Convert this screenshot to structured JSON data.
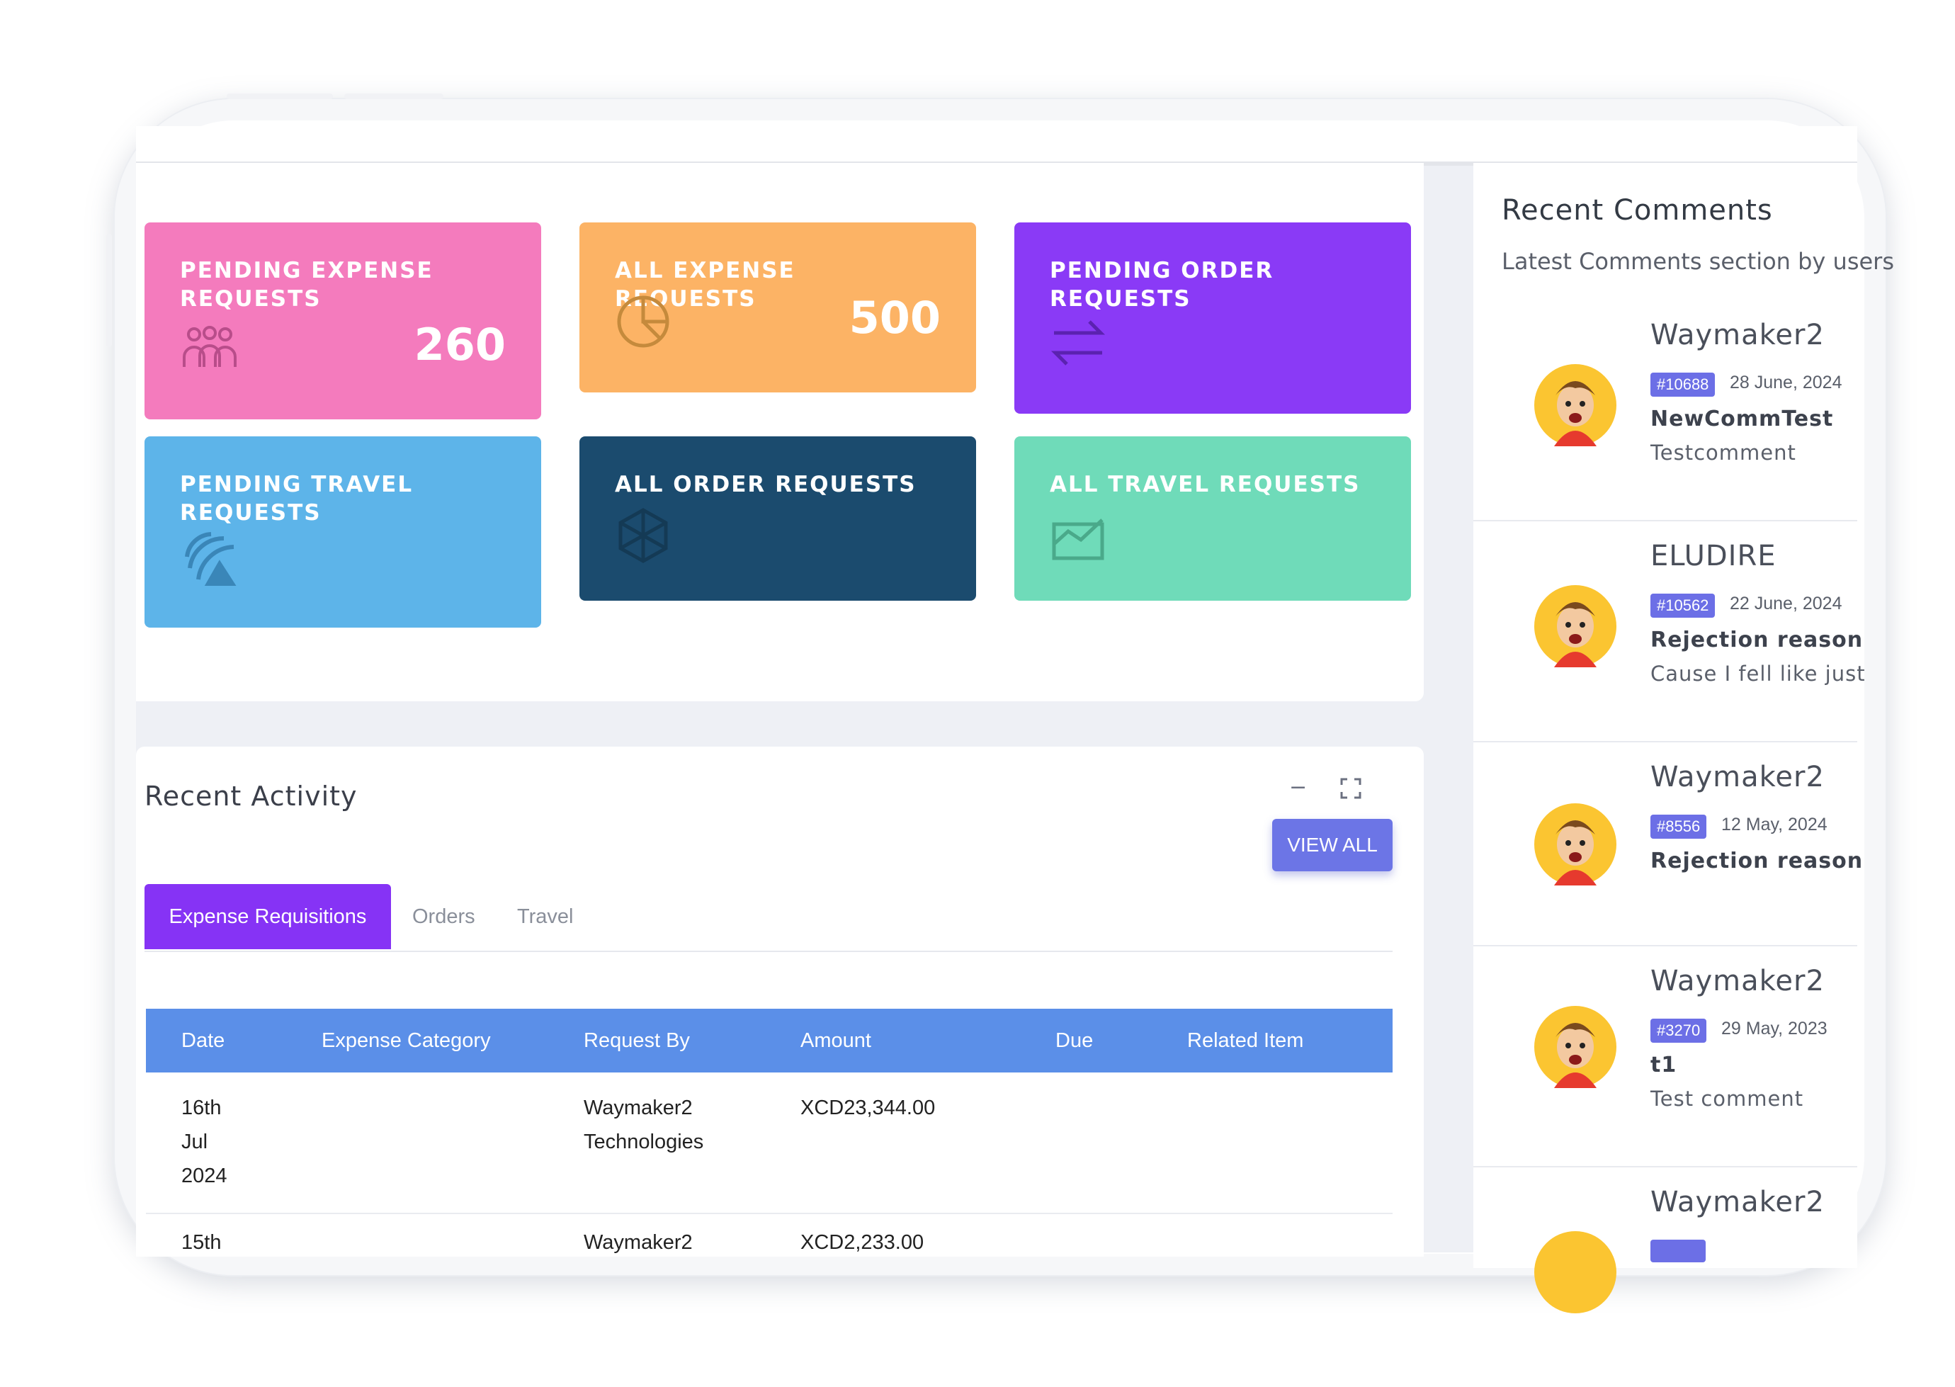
{
  "stat_cards": [
    {
      "title": "PENDING EXPENSE REQUESTS",
      "value": "260",
      "icon": "users-icon",
      "color": "#f47bbd"
    },
    {
      "title": "ALL EXPENSE REQUESTS",
      "value": "500",
      "icon": "pie-chart-icon",
      "color": "#fcb365"
    },
    {
      "title": "PENDING ORDER REQUESTS",
      "value": "",
      "icon": "swap-arrows-icon",
      "color": "#8a3af6"
    },
    {
      "title": "PENDING TRAVEL REQUESTS",
      "value": "",
      "icon": "signal-icon",
      "color": "#5db4e9"
    },
    {
      "title": "ALL ORDER REQUESTS",
      "value": "",
      "icon": "hexagon-icon",
      "color": "#1b4b6e"
    },
    {
      "title": "ALL TRAVEL REQUESTS",
      "value": "",
      "icon": "area-chart-icon",
      "color": "#6fdbb9"
    }
  ],
  "activity": {
    "title": "Recent Activity",
    "minimize": "−",
    "view_all": "VIEW ALL",
    "tabs": [
      "Expense Requisitions",
      "Orders",
      "Travel"
    ],
    "columns": [
      "Date",
      "Expense Category",
      "Request By",
      "Amount",
      "Due",
      "Related Item"
    ],
    "rows": [
      {
        "date": [
          "16th",
          "Jul",
          "2024"
        ],
        "category": "",
        "request_by": [
          "Waymaker2",
          "Technologies"
        ],
        "amount": "XCD23,344.00",
        "due": "",
        "related": ""
      },
      {
        "date": [
          "15th"
        ],
        "category": "",
        "request_by": [
          "Waymaker2"
        ],
        "amount": "XCD2,233.00",
        "due": "",
        "related": ""
      }
    ]
  },
  "comments": {
    "title": "Recent Comments",
    "subtitle": "Latest Comments section by users",
    "items": [
      {
        "name": "Waymaker2",
        "badge": "#10688",
        "date": "28 June, 2024",
        "subject": "NewCommTest",
        "text": "Testcomment"
      },
      {
        "name": "ELUDIRE",
        "badge": "#10562",
        "date": "22 June, 2024",
        "subject": "Rejection reason",
        "text": "Cause I fell like just"
      },
      {
        "name": "Waymaker2",
        "badge": "#8556",
        "date": "12 May, 2024",
        "subject": "Rejection reason",
        "text": ""
      },
      {
        "name": "Waymaker2",
        "badge": "#3270",
        "date": "29 May, 2023",
        "subject": "t1",
        "text": "Test comment"
      },
      {
        "name": "Waymaker2",
        "badge": "",
        "date": "",
        "subject": "",
        "text": ""
      }
    ]
  }
}
